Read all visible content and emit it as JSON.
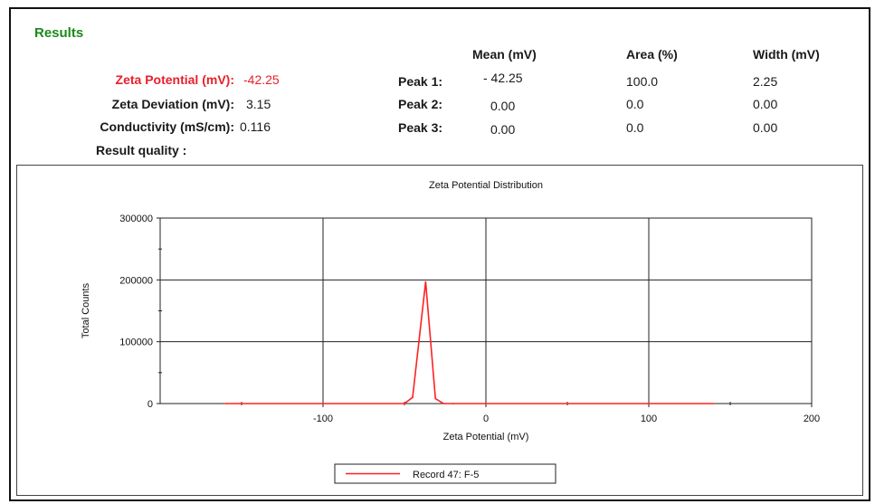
{
  "results": {
    "title": "Results",
    "zeta_potential_label": "Zeta Potential  (mV):",
    "zeta_potential_value": "-42.25",
    "zeta_deviation_label": "Zeta Deviation (mV):",
    "zeta_deviation_value": "3.15",
    "conductivity_label": "Conductivity (mS/cm):",
    "conductivity_value": "0.116",
    "result_quality_label": "Result quality :",
    "columns": [
      "Mean (mV)",
      "Area (%)",
      "Width (mV)"
    ],
    "peaks": [
      {
        "label": "Peak 1:",
        "mean": "- 42.25",
        "area": "100.0",
        "width": "2.25"
      },
      {
        "label": "Peak 2:",
        "mean": "0.00",
        "area": "0.0",
        "width": "0.00"
      },
      {
        "label": "Peak 3:",
        "mean": "0.00",
        "area": "0.0",
        "width": "0.00"
      }
    ]
  },
  "colors": {
    "title_green": "#1a8a1a",
    "accent_red": "#e8202a",
    "series_red": "#ff2020"
  },
  "chart_data": {
    "type": "line",
    "title": "Zeta Potential Distribution",
    "xlabel": "Zeta Potential (mV)",
    "ylabel": "Total Counts",
    "xlim": [
      -200,
      200
    ],
    "ylim": [
      0,
      300000
    ],
    "x_ticks": [
      -100,
      0,
      100,
      200
    ],
    "y_ticks": [
      0,
      100000,
      200000,
      300000
    ],
    "x_tick_labels": [
      "-100",
      "0",
      "100",
      "200"
    ],
    "y_tick_labels": [
      "0",
      "100000",
      "200000",
      "300000"
    ],
    "grid": true,
    "legend_placement": "bottom-center",
    "series": [
      {
        "name": "Record 47: F-5",
        "color": "#ff2020",
        "x": [
          -160,
          -50,
          -45,
          -37,
          -31,
          -26,
          -20,
          140
        ],
        "y": [
          0,
          0,
          10000,
          197000,
          8000,
          0,
          0,
          0
        ]
      }
    ]
  }
}
